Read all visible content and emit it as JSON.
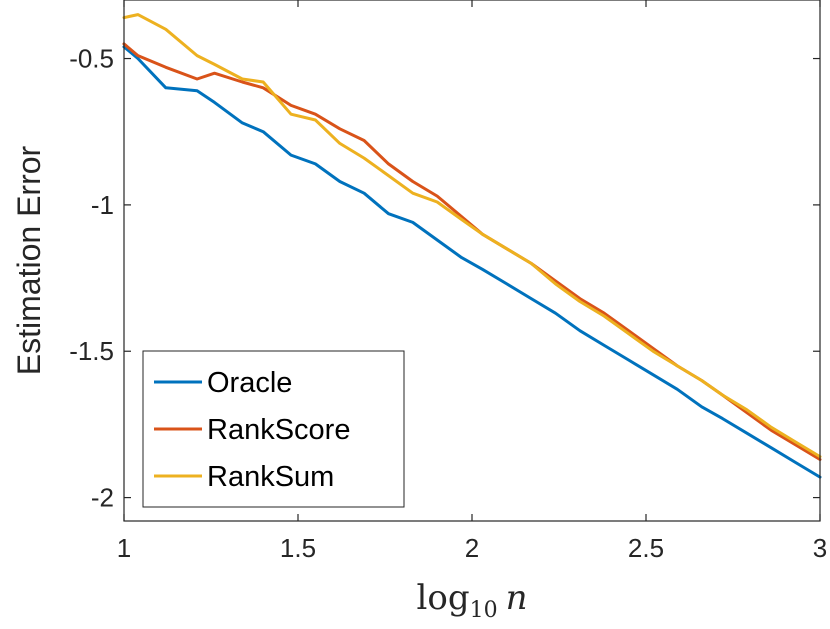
{
  "chart_data": {
    "type": "line",
    "title": "",
    "xlabel": {
      "base": "log",
      "subscript": "10",
      "variable": "n"
    },
    "ylabel": "Estimation Error",
    "xlim": [
      1,
      3
    ],
    "ylim": [
      -2.08,
      -0.3
    ],
    "xticks": [
      1,
      1.5,
      2,
      2.5,
      3
    ],
    "xtick_labels": [
      "1",
      "1.5",
      "2",
      "2.5",
      "3"
    ],
    "yticks": [
      -2,
      -1.5,
      -1,
      -0.5
    ],
    "ytick_labels": [
      "-2",
      "-1.5",
      "-1",
      "-0.5"
    ],
    "grid": false,
    "legend_position": "bottom-left",
    "x": [
      1.0,
      1.04,
      1.12,
      1.21,
      1.26,
      1.34,
      1.4,
      1.48,
      1.55,
      1.62,
      1.69,
      1.76,
      1.83,
      1.9,
      1.97,
      2.03,
      2.1,
      2.17,
      2.24,
      2.31,
      2.38,
      2.45,
      2.52,
      2.59,
      2.66,
      2.72,
      2.79,
      2.86,
      2.93,
      3.0
    ],
    "series": [
      {
        "name": "Oracle",
        "color": "#0072BD",
        "values": [
          -0.46,
          -0.5,
          -0.6,
          -0.61,
          -0.65,
          -0.72,
          -0.75,
          -0.83,
          -0.86,
          -0.92,
          -0.96,
          -1.03,
          -1.06,
          -1.12,
          -1.18,
          -1.22,
          -1.27,
          -1.32,
          -1.37,
          -1.43,
          -1.48,
          -1.53,
          -1.58,
          -1.63,
          -1.69,
          -1.73,
          -1.78,
          -1.83,
          -1.88,
          -1.93
        ]
      },
      {
        "name": "RankScore",
        "color": "#D95319",
        "values": [
          -0.45,
          -0.49,
          -0.53,
          -0.57,
          -0.55,
          -0.58,
          -0.6,
          -0.66,
          -0.69,
          -0.74,
          -0.78,
          -0.86,
          -0.92,
          -0.97,
          -1.04,
          -1.1,
          -1.15,
          -1.2,
          -1.26,
          -1.32,
          -1.37,
          -1.43,
          -1.49,
          -1.55,
          -1.6,
          -1.65,
          -1.71,
          -1.77,
          -1.82,
          -1.87
        ]
      },
      {
        "name": "RankSum",
        "color": "#EDB120",
        "values": [
          -0.36,
          -0.35,
          -0.4,
          -0.49,
          -0.52,
          -0.57,
          -0.58,
          -0.69,
          -0.71,
          -0.79,
          -0.84,
          -0.9,
          -0.96,
          -0.99,
          -1.05,
          -1.1,
          -1.15,
          -1.2,
          -1.27,
          -1.33,
          -1.38,
          -1.44,
          -1.5,
          -1.55,
          -1.6,
          -1.65,
          -1.7,
          -1.76,
          -1.81,
          -1.86
        ]
      }
    ]
  }
}
